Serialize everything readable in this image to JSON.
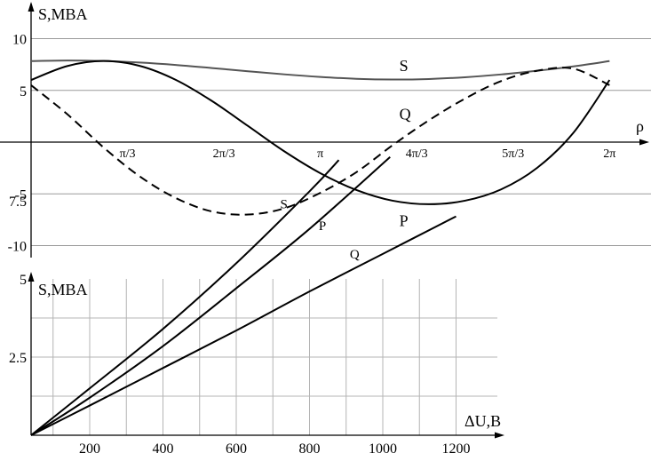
{
  "chart_data": [
    {
      "type": "line",
      "ylabel": "S,MBA",
      "xlabel": "ρ",
      "ylim": [
        -11,
        12
      ],
      "xlim": [
        0,
        6.2832
      ],
      "x_ticks": [
        {
          "value": 1.0472,
          "label": "π/3"
        },
        {
          "value": 2.0944,
          "label": "2π/3"
        },
        {
          "value": 3.1416,
          "label": "π"
        },
        {
          "value": 4.1888,
          "label": "4π/3"
        },
        {
          "value": 5.236,
          "label": "5π/3"
        },
        {
          "value": 6.2832,
          "label": "2π"
        }
      ],
      "y_ticks": [
        {
          "value": 10,
          "label": "10"
        },
        {
          "value": 5,
          "label": "5"
        },
        {
          "value": -5,
          "label": "-5"
        },
        {
          "value": -10,
          "label": "-10"
        }
      ],
      "grid": "horizontal",
      "series": [
        {
          "name": "S",
          "color": "#555555",
          "dash": "solid",
          "label_at": [
            4.0,
            7.4
          ],
          "x": [
            0,
            0.3927,
            0.7854,
            1.1781,
            1.5708,
            1.9635,
            2.3562,
            2.7489,
            3.1416,
            3.5343,
            3.927,
            4.3197,
            4.7124,
            5.1051,
            5.4978,
            5.8905,
            6.2832
          ],
          "y": [
            7.83,
            7.89,
            7.84,
            7.69,
            7.46,
            7.16,
            6.85,
            6.55,
            6.3,
            6.12,
            6.05,
            6.1,
            6.27,
            6.54,
            6.9,
            7.32,
            7.83
          ]
        },
        {
          "name": "P",
          "color": "#000000",
          "dash": "solid",
          "label_at": [
            4.0,
            -7.6
          ],
          "x": [
            0,
            0.3927,
            0.7854,
            1.1781,
            1.5708,
            1.9635,
            2.3562,
            2.7489,
            3.1416,
            3.5343,
            3.927,
            4.3197,
            4.7124,
            5.1051,
            5.4978,
            5.8905,
            6.2832
          ],
          "y": [
            6.0,
            7.35,
            7.84,
            7.37,
            6.02,
            3.98,
            1.56,
            -0.88,
            -3.0,
            -4.63,
            -5.66,
            -6.0,
            -5.66,
            -4.57,
            -2.48,
            0.9,
            6.0
          ]
        },
        {
          "name": "Q",
          "color": "#000000",
          "dash": "dashed",
          "label_at": [
            4.0,
            2.7
          ],
          "x": [
            0,
            0.3927,
            0.7854,
            1.1781,
            1.5708,
            1.9635,
            2.3562,
            2.7489,
            3.1416,
            3.5343,
            3.927,
            4.3197,
            4.7124,
            5.1051,
            5.4978,
            5.8905,
            6.2832
          ],
          "y": [
            5.5,
            2.7,
            -0.5,
            -3.3,
            -5.4,
            -6.7,
            -7.0,
            -6.4,
            -4.9,
            -2.9,
            -0.3,
            2.1,
            4.2,
            5.9,
            6.9,
            7.1,
            5.5
          ]
        }
      ]
    },
    {
      "type": "line",
      "ylabel": "S,MBA",
      "xlabel": "ΔU,B",
      "xlim": [
        40,
        1250
      ],
      "ylim": [
        0,
        10
      ],
      "x_ticks": [
        {
          "value": 200,
          "label": "200"
        },
        {
          "value": 400,
          "label": "400"
        },
        {
          "value": 600,
          "label": "600"
        },
        {
          "value": 800,
          "label": "800"
        },
        {
          "value": 1000,
          "label": "1000"
        },
        {
          "value": 1200,
          "label": "1200"
        }
      ],
      "y_ticks": [
        {
          "value": 2.5,
          "label": "2.5"
        },
        {
          "value": 5,
          "label": "5"
        },
        {
          "value": 7.5,
          "label": "7.5"
        }
      ],
      "grid": "both",
      "series": [
        {
          "name": "S",
          "color": "#000000",
          "label_at": [
            720,
            7.4
          ],
          "x": [
            40,
            200,
            400,
            600,
            800,
            880
          ],
          "y": [
            0,
            1.5,
            3.4,
            5.5,
            7.8,
            8.8
          ]
        },
        {
          "name": "P",
          "color": "#000000",
          "label_at": [
            825,
            6.7
          ],
          "x": [
            40,
            200,
            400,
            600,
            800,
            1020
          ],
          "y": [
            0,
            1.2,
            2.85,
            4.7,
            6.6,
            8.9
          ]
        },
        {
          "name": "Q",
          "color": "#000000",
          "label_at": [
            910,
            5.8
          ],
          "x": [
            40,
            200,
            400,
            600,
            800,
            1000,
            1200
          ],
          "y": [
            0,
            0.95,
            2.15,
            3.35,
            4.6,
            5.8,
            7.0
          ]
        }
      ]
    }
  ]
}
